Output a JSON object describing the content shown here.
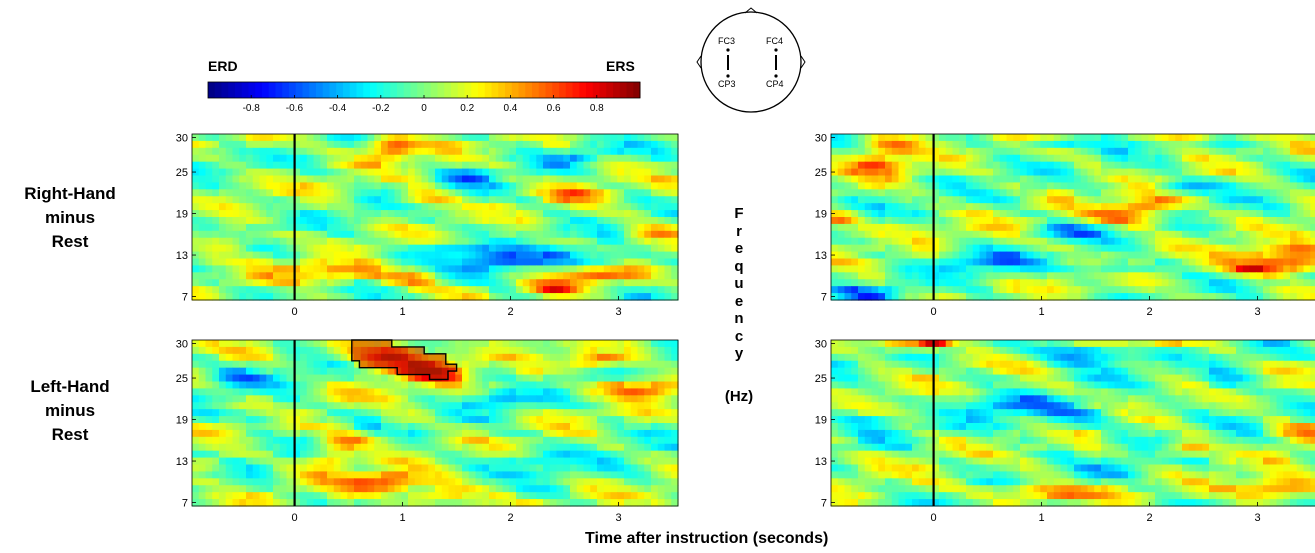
{
  "colorbar": {
    "left_label": "ERD",
    "right_label": "ERS",
    "ticks": [
      "-0.8",
      "-0.6",
      "-0.4",
      "-0.2",
      "0",
      "0.2",
      "0.4",
      "0.6",
      "0.8"
    ],
    "range": [
      -1,
      1
    ]
  },
  "head": {
    "electrodes": [
      "FC3",
      "FC4",
      "CP3",
      "CP4"
    ]
  },
  "rows": [
    {
      "lines": [
        "Right-Hand",
        "minus",
        "Rest"
      ]
    },
    {
      "lines": [
        "Left-Hand",
        "minus",
        "Rest"
      ]
    }
  ],
  "frequency_label": {
    "letters": [
      "F",
      "r",
      "e",
      "q",
      "u",
      "e",
      "n",
      "c",
      "y"
    ],
    "unit": "(Hz)"
  },
  "xlabel": "Time after instruction (seconds)",
  "colors": {
    "instruction_line": "#000000",
    "significance_outline": "#000000"
  },
  "chart_data": [
    {
      "type": "heatmap",
      "panel": "right-hand minus rest, FC3-CP3",
      "xlim": [
        -0.95,
        3.55
      ],
      "ylim": [
        6.5,
        30.5
      ],
      "xticks": [
        "0",
        "1",
        "2",
        "3"
      ],
      "yticks": [
        "7",
        "13",
        "19",
        "25",
        "30"
      ],
      "instruction_time": 0,
      "blobs": [
        {
          "t": 0.9,
          "f": 28.5,
          "w": 0.15,
          "h": 1.5,
          "v": 0.55
        },
        {
          "t": 1.2,
          "f": 21.0,
          "w": 0.2,
          "h": 1.0,
          "v": 0.45
        },
        {
          "t": -0.6,
          "f": 15.0,
          "w": 0.15,
          "h": 1.2,
          "v": 0.4
        },
        {
          "t": 0.3,
          "f": 10.5,
          "w": 0.3,
          "h": 1.0,
          "v": 0.5
        },
        {
          "t": 1.0,
          "f": 9.5,
          "w": 0.25,
          "h": 0.9,
          "v": 0.45
        },
        {
          "t": 2.8,
          "f": 10.0,
          "w": 0.25,
          "h": 0.9,
          "v": 0.6
        },
        {
          "t": 2.4,
          "f": 8.0,
          "w": 0.15,
          "h": 0.6,
          "v": 0.55
        },
        {
          "t": 1.9,
          "f": 12.0,
          "w": 0.25,
          "h": 1.5,
          "v": -0.45
        },
        {
          "t": 2.7,
          "f": 12.5,
          "w": 0.35,
          "h": 1.0,
          "v": -0.4
        },
        {
          "t": 1.4,
          "f": 14.0,
          "w": 0.25,
          "h": 0.8,
          "v": -0.35
        },
        {
          "t": 3.3,
          "f": 16.0,
          "w": 0.2,
          "h": 1.0,
          "v": 0.4
        },
        {
          "t": 2.5,
          "f": 27.0,
          "w": 0.2,
          "h": 0.8,
          "v": -0.3
        },
        {
          "t": -0.4,
          "f": 29.5,
          "w": 0.2,
          "h": 0.8,
          "v": 0.3
        },
        {
          "t": 1.6,
          "f": 24.0,
          "w": 0.2,
          "h": 1.0,
          "v": -0.3
        },
        {
          "t": 2.6,
          "f": 22.0,
          "w": 0.2,
          "h": 0.8,
          "v": 0.45
        }
      ]
    },
    {
      "type": "heatmap",
      "panel": "right-hand minus rest, FC4-CP4",
      "xlim": [
        -0.95,
        3.55
      ],
      "ylim": [
        6.5,
        30.5
      ],
      "xticks": [
        "0",
        "1",
        "2",
        "3"
      ],
      "yticks": [
        "7",
        "13",
        "19",
        "25",
        "30"
      ],
      "instruction_time": 0,
      "blobs": [
        {
          "t": -0.4,
          "f": 29.0,
          "w": 0.2,
          "h": 1.0,
          "v": 0.55
        },
        {
          "t": -0.5,
          "f": 26.0,
          "w": 0.2,
          "h": 1.2,
          "v": 0.5
        },
        {
          "t": -0.9,
          "f": 18.0,
          "w": 0.15,
          "h": 0.8,
          "v": 0.65
        },
        {
          "t": 1.8,
          "f": 18.5,
          "w": 0.3,
          "h": 1.0,
          "v": 0.6
        },
        {
          "t": 2.0,
          "f": 20.5,
          "w": 0.2,
          "h": 0.8,
          "v": 0.5
        },
        {
          "t": 3.3,
          "f": 12.5,
          "w": 0.3,
          "h": 1.2,
          "v": 0.75
        },
        {
          "t": 3.0,
          "f": 11.0,
          "w": 0.3,
          "h": 0.8,
          "v": 0.55
        },
        {
          "t": 0.5,
          "f": 12.0,
          "w": 0.3,
          "h": 1.0,
          "v": -0.4
        },
        {
          "t": 1.7,
          "f": 11.0,
          "w": 0.25,
          "h": 0.8,
          "v": -0.35
        },
        {
          "t": -0.6,
          "f": 7.5,
          "w": 0.2,
          "h": 0.6,
          "v": -0.45
        },
        {
          "t": 1.1,
          "f": 29.0,
          "w": 0.2,
          "h": 0.6,
          "v": -0.3
        },
        {
          "t": 2.3,
          "f": 23.0,
          "w": 0.2,
          "h": 0.8,
          "v": -0.35
        },
        {
          "t": 1.3,
          "f": 16.5,
          "w": 0.25,
          "h": 0.8,
          "v": -0.35
        },
        {
          "t": 2.4,
          "f": 30.0,
          "w": 0.2,
          "h": 0.6,
          "v": 0.5
        }
      ]
    },
    {
      "type": "heatmap",
      "panel": "left-hand minus rest, FC3-CP3",
      "xlim": [
        -0.95,
        3.55
      ],
      "ylim": [
        6.5,
        30.5
      ],
      "xticks": [
        "0",
        "1",
        "2",
        "3"
      ],
      "yticks": [
        "7",
        "13",
        "19",
        "25",
        "30"
      ],
      "instruction_time": 0,
      "blobs": [
        {
          "t": 0.9,
          "f": 28.0,
          "w": 0.3,
          "h": 1.5,
          "v": 0.8
        },
        {
          "t": 1.3,
          "f": 26.0,
          "w": 0.2,
          "h": 1.0,
          "v": 0.65
        },
        {
          "t": 2.8,
          "f": 27.5,
          "w": 0.2,
          "h": 0.8,
          "v": 0.6
        },
        {
          "t": 3.2,
          "f": 23.5,
          "w": 0.25,
          "h": 1.0,
          "v": 0.7
        },
        {
          "t": 0.5,
          "f": 16.0,
          "w": 0.2,
          "h": 1.0,
          "v": 0.5
        },
        {
          "t": 0.8,
          "f": 10.0,
          "w": 0.3,
          "h": 1.2,
          "v": 0.55
        },
        {
          "t": 0.3,
          "f": 13.0,
          "w": 0.15,
          "h": 1.0,
          "v": 0.45
        },
        {
          "t": 1.4,
          "f": 8.0,
          "w": 0.25,
          "h": 1.0,
          "v": 0.5
        },
        {
          "t": -0.5,
          "f": 25.0,
          "w": 0.2,
          "h": 1.0,
          "v": -0.3
        },
        {
          "t": -0.3,
          "f": 19.5,
          "w": 0.15,
          "h": 0.8,
          "v": -0.3
        },
        {
          "t": 2.2,
          "f": 13.0,
          "w": 0.2,
          "h": 0.8,
          "v": -0.35
        },
        {
          "t": 1.9,
          "f": 22.0,
          "w": 0.2,
          "h": 0.8,
          "v": -0.3
        },
        {
          "t": -0.8,
          "f": 12.5,
          "w": 0.15,
          "h": 0.8,
          "v": 0.35
        }
      ],
      "significant_region": [
        [
          0.53,
          30.5
        ],
        [
          0.9,
          30.5
        ],
        [
          0.9,
          29.5
        ],
        [
          1.2,
          29.5
        ],
        [
          1.2,
          28.5
        ],
        [
          1.4,
          28.5
        ],
        [
          1.4,
          27.0
        ],
        [
          1.5,
          27.0
        ],
        [
          1.5,
          26.0
        ],
        [
          1.42,
          26.0
        ],
        [
          1.42,
          24.8
        ],
        [
          1.25,
          24.8
        ],
        [
          1.25,
          25.5
        ],
        [
          0.95,
          25.5
        ],
        [
          0.95,
          26.5
        ],
        [
          0.6,
          26.5
        ],
        [
          0.6,
          27.5
        ],
        [
          0.53,
          27.5
        ]
      ]
    },
    {
      "type": "heatmap",
      "panel": "left-hand minus rest, FC4-CP4",
      "xlim": [
        -0.95,
        3.55
      ],
      "ylim": [
        6.5,
        30.5
      ],
      "xticks": [
        "0",
        "1",
        "2",
        "3"
      ],
      "yticks": [
        "7",
        "13",
        "19",
        "25",
        "30"
      ],
      "instruction_time": 0,
      "blobs": [
        {
          "t": -0.3,
          "f": 30.0,
          "w": 0.25,
          "h": 0.8,
          "v": 0.6
        },
        {
          "t": 0.0,
          "f": 30.2,
          "w": 0.1,
          "h": 0.5,
          "v": 0.75
        },
        {
          "t": 1.0,
          "f": 8.5,
          "w": 0.35,
          "h": 0.8,
          "v": 0.6
        },
        {
          "t": 3.2,
          "f": 9.0,
          "w": 0.3,
          "h": 1.2,
          "v": 0.65
        },
        {
          "t": 2.3,
          "f": 15.0,
          "w": 0.2,
          "h": 0.8,
          "v": 0.5
        },
        {
          "t": 1.4,
          "f": 28.5,
          "w": 0.3,
          "h": 1.2,
          "v": -0.6
        },
        {
          "t": 1.2,
          "f": 19.5,
          "w": 0.4,
          "h": 1.0,
          "v": -0.4
        },
        {
          "t": 0.6,
          "f": 21.5,
          "w": 0.3,
          "h": 0.8,
          "v": -0.35
        },
        {
          "t": -0.6,
          "f": 19.0,
          "w": 0.2,
          "h": 0.8,
          "v": -0.35
        },
        {
          "t": 2.7,
          "f": 24.5,
          "w": 0.2,
          "h": 0.8,
          "v": -0.3
        },
        {
          "t": 2.1,
          "f": 30.3,
          "w": 0.4,
          "h": 0.4,
          "v": 0.4
        },
        {
          "t": 3.4,
          "f": 17.0,
          "w": 0.2,
          "h": 1.0,
          "v": 0.45
        },
        {
          "t": 1.8,
          "f": 11.5,
          "w": 0.25,
          "h": 0.8,
          "v": -0.3
        }
      ]
    }
  ]
}
